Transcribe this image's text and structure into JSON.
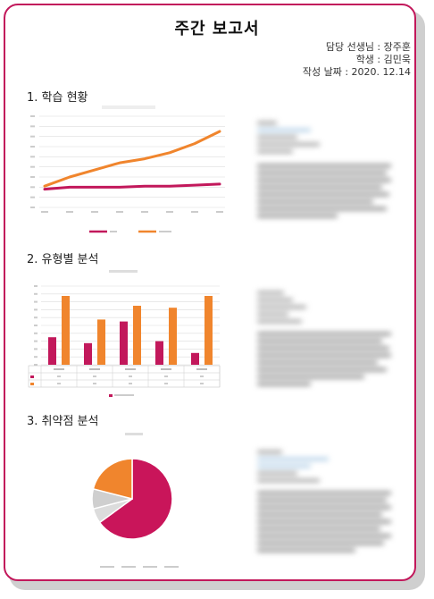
{
  "report": {
    "title": "주간 보고서",
    "teacher": "담당 선생님 : 장주훈",
    "student": "학생 : 김민욱",
    "date": "작성 날짜 : 2020. 12.14"
  },
  "sections": {
    "s1": "1. 학습 현황",
    "s2": "2. 유형별 분석",
    "s3": "3. 취약점 분석"
  },
  "chart_data": [
    {
      "type": "line",
      "x_count": 8,
      "ylim": [
        0,
        90
      ],
      "series": [
        {
          "color": "#c2185b",
          "values": [
            18,
            20,
            20,
            20,
            21,
            21,
            22,
            23
          ]
        },
        {
          "color": "#f0852d",
          "values": [
            21,
            30,
            37,
            44,
            48,
            54,
            63,
            75
          ]
        }
      ]
    },
    {
      "type": "bar",
      "categories_count": 5,
      "ylim": [
        0,
        40
      ],
      "series": [
        {
          "color": "#c2185b",
          "values": [
            14,
            11,
            22,
            12,
            6
          ]
        },
        {
          "color": "#f0852d",
          "values": [
            35,
            23,
            30,
            29,
            35
          ]
        }
      ]
    },
    {
      "type": "pie",
      "slices": [
        {
          "color": "#c9155a",
          "value": 65
        },
        {
          "color": "#dcdcdc",
          "value": 6
        },
        {
          "color": "#cfcfcf",
          "value": 8
        },
        {
          "color": "#f0852d",
          "value": 21
        }
      ]
    }
  ]
}
